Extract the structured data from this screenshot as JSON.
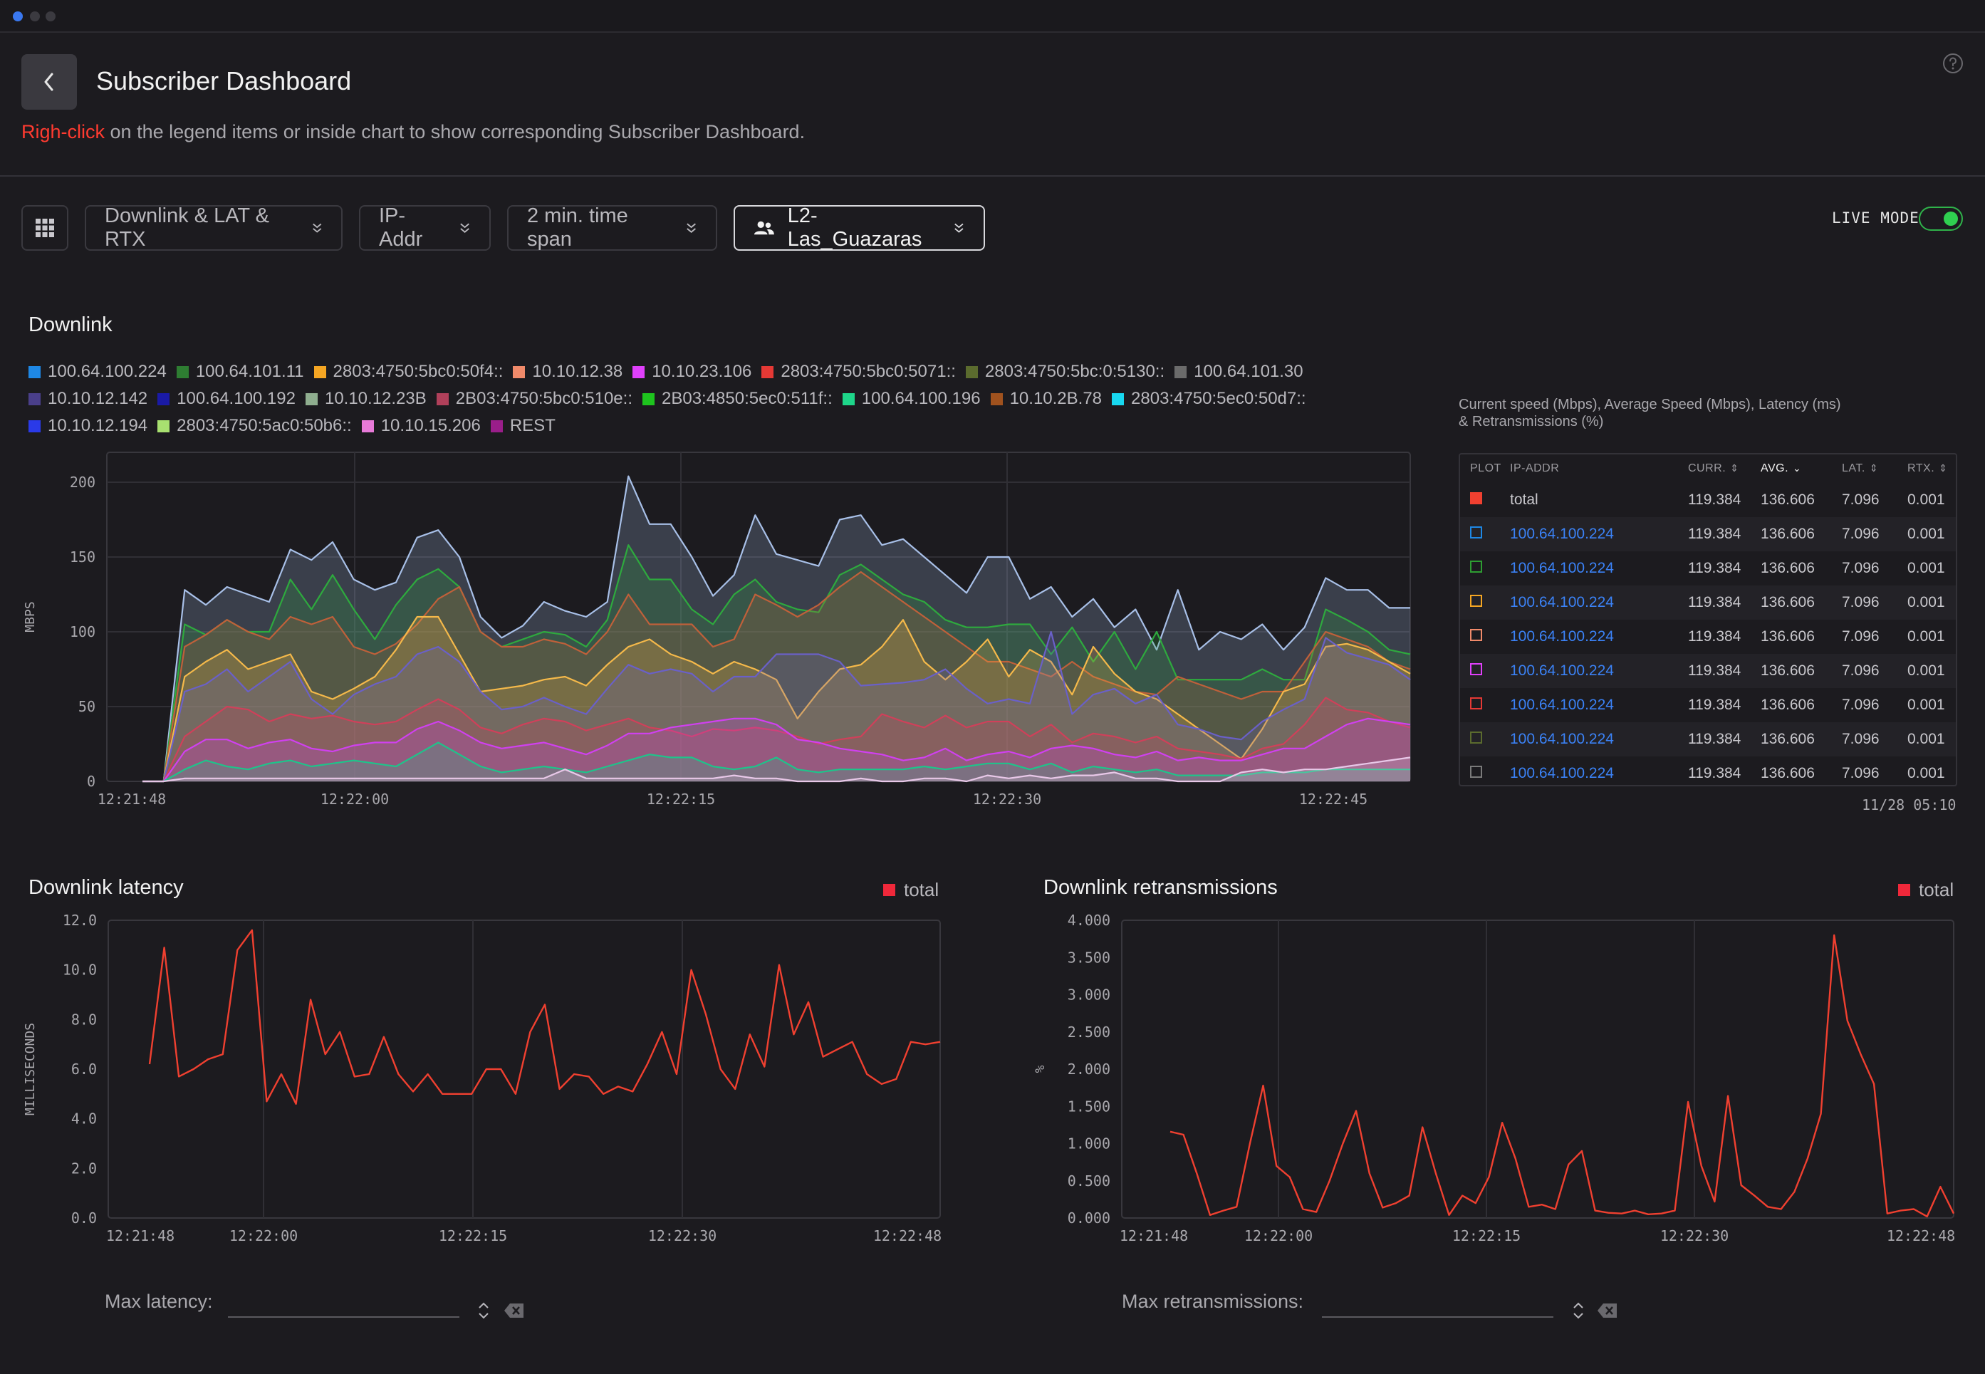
{
  "header": {
    "title": "Subscriber Dashboard",
    "hint_accent": "Righ-click",
    "hint_rest": " on the legend items or inside chart to show corresponding Subscriber Dashboard."
  },
  "toolbar": {
    "metrics": "Downlink & LAT & RTX",
    "group_by": "IP-Addr",
    "time_span": "2 min. time span",
    "subscriber": "L2-Las_Guazaras",
    "live_mode_label": "LIVE MODE",
    "live_mode_on": true
  },
  "downlink": {
    "title": "Downlink",
    "legend": [
      {
        "label": "100.64.100.224",
        "color": "#1e88e5"
      },
      {
        "label": "100.64.101.11",
        "color": "#2e7d32"
      },
      {
        "label": "2803:4750:5bc0:50f4::",
        "color": "#f5a623"
      },
      {
        "label": "10.10.12.38",
        "color": "#f08a6a"
      },
      {
        "label": "10.10.23.106",
        "color": "#e040fb"
      },
      {
        "label": "2803:4750:5bc0:5071::",
        "color": "#e53935"
      },
      {
        "label": "2803:4750:5bc:0:5130::",
        "color": "#5b6b2e"
      },
      {
        "label": "100.64.101.30",
        "color": "#6b6b6b"
      },
      {
        "label": "10.10.12.142",
        "color": "#4a3f8a"
      },
      {
        "label": "100.64.100.192",
        "color": "#1a1aa6"
      },
      {
        "label": "10.10.12.23B",
        "color": "#8fae8f"
      },
      {
        "label": "2B03:4750:5bc0:510e::",
        "color": "#b0405a"
      },
      {
        "label": "2B03:4850:5ec0:511f::",
        "color": "#1ec41e"
      },
      {
        "label": "100.64.100.196",
        "color": "#1ed68a"
      },
      {
        "label": "10.10.2B.78",
        "color": "#a0521e"
      },
      {
        "label": "2803:4750:5ec0:50d7::",
        "color": "#18d8f0"
      },
      {
        "label": "10.10.12.194",
        "color": "#2a3ae8"
      },
      {
        "label": "2803:4750:5ac0:50b6::",
        "color": "#a8e070"
      },
      {
        "label": "10.10.15.206",
        "color": "#e87ad8"
      },
      {
        "label": "REST",
        "color": "#9a1e8a"
      }
    ]
  },
  "chart_data": [
    {
      "type": "area",
      "title": "Downlink",
      "xlabel": "",
      "ylabel": "MBPS",
      "ylim": [
        0,
        220
      ],
      "yticks": [
        "0",
        "50",
        "100",
        "150",
        "200"
      ],
      "xticks": [
        "12:21:48",
        "12:22:00",
        "12:22:15",
        "12:22:30",
        "12:22:45"
      ],
      "grid": true,
      "x": [
        "12:21:48",
        "12:21:49",
        "12:21:50",
        "12:21:51",
        "12:21:52",
        "12:21:53",
        "12:21:54",
        "12:21:55",
        "12:21:56",
        "12:21:57",
        "12:21:58",
        "12:21:59",
        "12:22:00",
        "12:22:01",
        "12:22:02",
        "12:22:03",
        "12:22:04",
        "12:22:05",
        "12:22:06",
        "12:22:07",
        "12:22:08",
        "12:22:09",
        "12:22:10",
        "12:22:11",
        "12:22:12",
        "12:22:13",
        "12:22:14",
        "12:22:15",
        "12:22:16",
        "12:22:17",
        "12:22:18",
        "12:22:19",
        "12:22:20",
        "12:22:21",
        "12:22:22",
        "12:22:23",
        "12:22:24",
        "12:22:25",
        "12:22:26",
        "12:22:27",
        "12:22:28",
        "12:22:29",
        "12:22:30",
        "12:22:31",
        "12:22:32",
        "12:22:33",
        "12:22:34",
        "12:22:35",
        "12:22:36",
        "12:22:37",
        "12:22:38",
        "12:22:39",
        "12:22:40",
        "12:22:41",
        "12:22:42",
        "12:22:43",
        "12:22:44",
        "12:22:45",
        "12:22:46",
        "12:22:47",
        "12:22:48"
      ],
      "series": [
        {
          "name": "100.64.101.30",
          "color": "#a8c0e8",
          "values": [
            0,
            0,
            128,
            118,
            130,
            125,
            120,
            155,
            148,
            160,
            135,
            128,
            133,
            163,
            168,
            150,
            110,
            96,
            104,
            120,
            114,
            110,
            120,
            204,
            172,
            172,
            150,
            124,
            138,
            178,
            152,
            148,
            144,
            175,
            178,
            158,
            162,
            150,
            138,
            126,
            150,
            150,
            122,
            130,
            110,
            122,
            103,
            115,
            88,
            128,
            88,
            100,
            95,
            105,
            88,
            103,
            136,
            128,
            128,
            116,
            116
          ]
        },
        {
          "name": "100.64.101.11",
          "color": "#2eaa3e",
          "values": [
            0,
            0,
            105,
            98,
            108,
            100,
            100,
            135,
            115,
            138,
            115,
            95,
            118,
            135,
            142,
            130,
            100,
            90,
            95,
            100,
            98,
            90,
            108,
            158,
            135,
            135,
            115,
            105,
            125,
            135,
            120,
            115,
            113,
            138,
            145,
            135,
            125,
            120,
            108,
            103,
            103,
            105,
            105,
            85,
            103,
            80,
            100,
            75,
            100,
            68,
            68,
            68,
            68,
            75,
            68,
            68,
            115,
            108,
            100,
            88,
            85
          ]
        },
        {
          "name": "2803:4750:5bc0:5071::",
          "color": "#c0603a",
          "values": [
            0,
            0,
            90,
            98,
            108,
            100,
            95,
            110,
            105,
            110,
            90,
            85,
            92,
            105,
            122,
            130,
            100,
            90,
            90,
            95,
            92,
            85,
            100,
            125,
            105,
            105,
            105,
            90,
            95,
            125,
            118,
            110,
            118,
            130,
            140,
            130,
            120,
            110,
            100,
            90,
            80,
            80,
            75,
            70,
            80,
            70,
            65,
            60,
            58,
            70,
            65,
            60,
            55,
            60,
            60,
            80,
            100,
            95,
            90,
            80,
            75
          ]
        },
        {
          "name": "2803:4750:5bc0:50f4::",
          "color": "#f5b94a",
          "values": [
            0,
            0,
            70,
            80,
            88,
            75,
            80,
            85,
            60,
            55,
            62,
            70,
            88,
            110,
            110,
            85,
            60,
            62,
            64,
            68,
            70,
            64,
            78,
            90,
            95,
            85,
            80,
            72,
            80,
            75,
            68,
            42,
            60,
            75,
            78,
            90,
            108,
            80,
            68,
            80,
            95,
            70,
            88,
            80,
            58,
            90,
            72,
            60,
            55,
            45,
            35,
            25,
            15,
            35,
            60,
            65,
            90,
            92,
            88,
            80,
            72
          ]
        },
        {
          "name": "10.10.12.142",
          "color": "#6a60c8",
          "values": [
            0,
            0,
            60,
            65,
            75,
            60,
            70,
            80,
            55,
            45,
            58,
            65,
            70,
            85,
            90,
            80,
            60,
            48,
            50,
            56,
            50,
            45,
            62,
            78,
            72,
            75,
            72,
            60,
            70,
            70,
            85,
            85,
            85,
            80,
            64,
            65,
            66,
            68,
            75,
            62,
            52,
            55,
            52,
            100,
            45,
            58,
            62,
            52,
            58,
            38,
            35,
            30,
            28,
            40,
            48,
            55,
            96,
            86,
            82,
            78,
            68
          ]
        },
        {
          "name": "2803:4750:5bc0:510e::",
          "color": "#d0405a",
          "values": [
            0,
            0,
            30,
            40,
            50,
            48,
            40,
            45,
            42,
            44,
            40,
            38,
            40,
            48,
            55,
            48,
            36,
            32,
            38,
            42,
            40,
            34,
            38,
            42,
            36,
            34,
            30,
            35,
            34,
            36,
            34,
            30,
            25,
            28,
            30,
            45,
            40,
            36,
            44,
            36,
            40,
            40,
            30,
            38,
            26,
            32,
            30,
            26,
            30,
            22,
            20,
            18,
            15,
            22,
            25,
            38,
            56,
            48,
            46,
            40,
            36
          ]
        },
        {
          "name": "10.10.23.106",
          "color": "#d040f0",
          "values": [
            0,
            0,
            20,
            28,
            28,
            22,
            26,
            28,
            22,
            20,
            24,
            26,
            26,
            35,
            40,
            34,
            26,
            22,
            24,
            26,
            22,
            18,
            24,
            32,
            32,
            36,
            38,
            40,
            42,
            42,
            38,
            28,
            26,
            22,
            20,
            18,
            14,
            16,
            22,
            14,
            18,
            20,
            16,
            22,
            24,
            22,
            18,
            16,
            20,
            14,
            16,
            14,
            14,
            18,
            22,
            22,
            30,
            38,
            42,
            40,
            38
          ]
        },
        {
          "name": "100.64.100.196",
          "color": "#1ec48a",
          "values": [
            0,
            0,
            8,
            14,
            10,
            8,
            12,
            14,
            10,
            12,
            14,
            12,
            10,
            18,
            26,
            18,
            10,
            6,
            8,
            10,
            8,
            6,
            10,
            14,
            18,
            16,
            16,
            10,
            8,
            10,
            16,
            8,
            6,
            8,
            8,
            8,
            8,
            10,
            8,
            10,
            12,
            12,
            8,
            12,
            6,
            10,
            8,
            6,
            8,
            4,
            4,
            4,
            4,
            6,
            6,
            6,
            8,
            8,
            8,
            8,
            8
          ]
        },
        {
          "name": "10.10.15.206",
          "color": "#e8c8e8",
          "values": [
            0,
            0,
            2,
            2,
            2,
            2,
            2,
            2,
            2,
            2,
            2,
            2,
            2,
            2,
            2,
            2,
            2,
            2,
            2,
            2,
            8,
            2,
            2,
            2,
            2,
            2,
            2,
            2,
            4,
            2,
            2,
            0,
            0,
            0,
            2,
            0,
            0,
            2,
            2,
            0,
            4,
            2,
            4,
            2,
            4,
            4,
            6,
            2,
            2,
            0,
            0,
            0,
            6,
            8,
            6,
            8,
            8,
            10,
            12,
            14,
            16
          ]
        }
      ]
    },
    {
      "type": "line",
      "title": "Downlink latency",
      "xlabel": "",
      "ylabel": "MILLISECONDS",
      "ylim": [
        0,
        12
      ],
      "yticks": [
        "0.0",
        "2.0",
        "4.0",
        "6.0",
        "8.0",
        "10.0",
        "12.0"
      ],
      "xticks": [
        "12:21:48",
        "12:22:00",
        "12:22:15",
        "12:22:30",
        "12:22:48"
      ],
      "legend": "total",
      "series": [
        {
          "name": "total",
          "color": "#f04030",
          "values": [
            6.2,
            10.9,
            5.7,
            6.0,
            6.4,
            6.6,
            10.8,
            11.6,
            4.7,
            5.8,
            4.6,
            8.8,
            6.6,
            7.5,
            5.7,
            5.8,
            7.3,
            5.8,
            5.1,
            5.8,
            5.0,
            5.0,
            5.0,
            6.0,
            6.0,
            5.0,
            7.5,
            8.6,
            5.2,
            5.8,
            5.7,
            5.0,
            5.3,
            5.1,
            6.2,
            7.5,
            5.8,
            10.0,
            8.2,
            6.0,
            5.2,
            7.4,
            6.1,
            10.2,
            7.4,
            8.7,
            6.5,
            6.8,
            7.1,
            5.8,
            5.4,
            5.6,
            7.1,
            7.0,
            7.1
          ]
        }
      ]
    },
    {
      "type": "line",
      "title": "Downlink retransmissions",
      "xlabel": "",
      "ylabel": "%",
      "ylim": [
        0,
        4
      ],
      "yticks": [
        "0.000",
        "0.500",
        "1.000",
        "1.500",
        "2.000",
        "2.500",
        "3.000",
        "3.500",
        "4.000"
      ],
      "xticks": [
        "12:21:48",
        "12:22:00",
        "12:22:15",
        "12:22:30",
        "12:22:48"
      ],
      "legend": "total",
      "series": [
        {
          "name": "total",
          "color": "#f04030",
          "values": [
            1.16,
            1.12,
            0.6,
            0.04,
            0.1,
            0.15,
            1.0,
            1.78,
            0.7,
            0.55,
            0.12,
            0.08,
            0.5,
            1.0,
            1.44,
            0.6,
            0.14,
            0.2,
            0.3,
            1.22,
            0.6,
            0.04,
            0.3,
            0.2,
            0.55,
            1.28,
            0.8,
            0.15,
            0.18,
            0.12,
            0.72,
            0.9,
            0.1,
            0.07,
            0.06,
            0.1,
            0.05,
            0.06,
            0.1,
            1.56,
            0.7,
            0.22,
            1.64,
            0.44,
            0.3,
            0.15,
            0.12,
            0.35,
            0.8,
            1.4,
            3.8,
            2.65,
            2.2,
            1.8,
            0.06,
            0.1,
            0.12,
            0.02,
            0.42,
            0.06
          ]
        }
      ]
    }
  ],
  "table": {
    "caption_line1": "Current speed (Mbps), Average Speed (Mbps), Latency (ms)",
    "caption_line2": "& Retransmissions (%)",
    "headers": {
      "plot": "PLOT",
      "ip": "IP-ADDR",
      "curr": "CURR.",
      "avg": "AVG.",
      "lat": "LAT.",
      "rtx": "RTX."
    },
    "rows": [
      {
        "ip": "total",
        "curr": "119.384",
        "avg": "136.606",
        "lat": "7.096",
        "rtx": "0.001",
        "color": "#f04030",
        "filled": true,
        "link": false
      },
      {
        "ip": "100.64.100.224",
        "curr": "119.384",
        "avg": "136.606",
        "lat": "7.096",
        "rtx": "0.001",
        "color": "#1e88e5",
        "filled": false,
        "link": true
      },
      {
        "ip": "100.64.100.224",
        "curr": "119.384",
        "avg": "136.606",
        "lat": "7.096",
        "rtx": "0.001",
        "color": "#2e9d32",
        "filled": false,
        "link": true
      },
      {
        "ip": "100.64.100.224",
        "curr": "119.384",
        "avg": "136.606",
        "lat": "7.096",
        "rtx": "0.001",
        "color": "#f5a623",
        "filled": false,
        "link": true
      },
      {
        "ip": "100.64.100.224",
        "curr": "119.384",
        "avg": "136.606",
        "lat": "7.096",
        "rtx": "0.001",
        "color": "#f08a6a",
        "filled": false,
        "link": true
      },
      {
        "ip": "100.64.100.224",
        "curr": "119.384",
        "avg": "136.606",
        "lat": "7.096",
        "rtx": "0.001",
        "color": "#e040fb",
        "filled": false,
        "link": true
      },
      {
        "ip": "100.64.100.224",
        "curr": "119.384",
        "avg": "136.606",
        "lat": "7.096",
        "rtx": "0.001",
        "color": "#e53935",
        "filled": false,
        "link": true
      },
      {
        "ip": "100.64.100.224",
        "curr": "119.384",
        "avg": "136.606",
        "lat": "7.096",
        "rtx": "0.001",
        "color": "#5b6b2e",
        "filled": false,
        "link": true
      },
      {
        "ip": "100.64.100.224",
        "curr": "119.384",
        "avg": "136.606",
        "lat": "7.096",
        "rtx": "0.001",
        "color": "#7a7a7a",
        "filled": false,
        "link": true
      }
    ],
    "timestamp": "11/28 05:10"
  },
  "latency": {
    "title": "Downlink latency",
    "legend_label": "total",
    "max_label": "Max latency:",
    "max_value": ""
  },
  "retrans": {
    "title": "Downlink retransmissions",
    "legend_label": "total",
    "max_label": "Max retransmissions:",
    "max_value": ""
  },
  "icons": {
    "back": "chevron-left-icon",
    "help": "help-circle-icon",
    "grid": "grid-icon",
    "user": "users-icon",
    "dropdown": "chevron-down-icon",
    "stepper": "up-down-icon",
    "clear": "backspace-icon"
  }
}
